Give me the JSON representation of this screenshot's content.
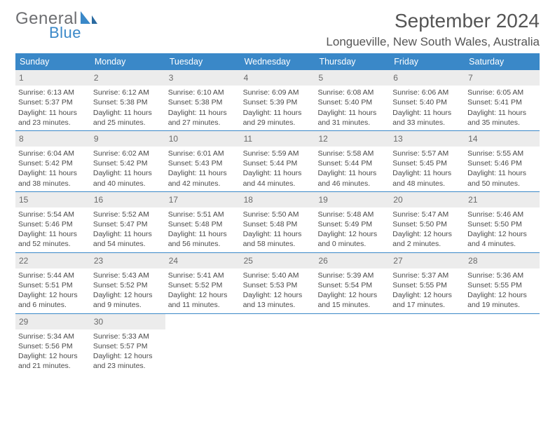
{
  "logo": {
    "general": "General",
    "blue": "Blue"
  },
  "title": "September 2024",
  "location": "Longueville, New South Wales, Australia",
  "colors": {
    "header_bg": "#3a88c8",
    "header_text": "#ffffff",
    "daynum_bg": "#ececec",
    "border": "#3a88c8",
    "text": "#4a4a4a",
    "logo_gray": "#6d6e71",
    "logo_blue": "#3a88c8"
  },
  "day_headers": [
    "Sunday",
    "Monday",
    "Tuesday",
    "Wednesday",
    "Thursday",
    "Friday",
    "Saturday"
  ],
  "weeks": [
    [
      {
        "n": "1",
        "sr": "Sunrise: 6:13 AM",
        "ss": "Sunset: 5:37 PM",
        "d1": "Daylight: 11 hours",
        "d2": "and 23 minutes."
      },
      {
        "n": "2",
        "sr": "Sunrise: 6:12 AM",
        "ss": "Sunset: 5:38 PM",
        "d1": "Daylight: 11 hours",
        "d2": "and 25 minutes."
      },
      {
        "n": "3",
        "sr": "Sunrise: 6:10 AM",
        "ss": "Sunset: 5:38 PM",
        "d1": "Daylight: 11 hours",
        "d2": "and 27 minutes."
      },
      {
        "n": "4",
        "sr": "Sunrise: 6:09 AM",
        "ss": "Sunset: 5:39 PM",
        "d1": "Daylight: 11 hours",
        "d2": "and 29 minutes."
      },
      {
        "n": "5",
        "sr": "Sunrise: 6:08 AM",
        "ss": "Sunset: 5:40 PM",
        "d1": "Daylight: 11 hours",
        "d2": "and 31 minutes."
      },
      {
        "n": "6",
        "sr": "Sunrise: 6:06 AM",
        "ss": "Sunset: 5:40 PM",
        "d1": "Daylight: 11 hours",
        "d2": "and 33 minutes."
      },
      {
        "n": "7",
        "sr": "Sunrise: 6:05 AM",
        "ss": "Sunset: 5:41 PM",
        "d1": "Daylight: 11 hours",
        "d2": "and 35 minutes."
      }
    ],
    [
      {
        "n": "8",
        "sr": "Sunrise: 6:04 AM",
        "ss": "Sunset: 5:42 PM",
        "d1": "Daylight: 11 hours",
        "d2": "and 38 minutes."
      },
      {
        "n": "9",
        "sr": "Sunrise: 6:02 AM",
        "ss": "Sunset: 5:42 PM",
        "d1": "Daylight: 11 hours",
        "d2": "and 40 minutes."
      },
      {
        "n": "10",
        "sr": "Sunrise: 6:01 AM",
        "ss": "Sunset: 5:43 PM",
        "d1": "Daylight: 11 hours",
        "d2": "and 42 minutes."
      },
      {
        "n": "11",
        "sr": "Sunrise: 5:59 AM",
        "ss": "Sunset: 5:44 PM",
        "d1": "Daylight: 11 hours",
        "d2": "and 44 minutes."
      },
      {
        "n": "12",
        "sr": "Sunrise: 5:58 AM",
        "ss": "Sunset: 5:44 PM",
        "d1": "Daylight: 11 hours",
        "d2": "and 46 minutes."
      },
      {
        "n": "13",
        "sr": "Sunrise: 5:57 AM",
        "ss": "Sunset: 5:45 PM",
        "d1": "Daylight: 11 hours",
        "d2": "and 48 minutes."
      },
      {
        "n": "14",
        "sr": "Sunrise: 5:55 AM",
        "ss": "Sunset: 5:46 PM",
        "d1": "Daylight: 11 hours",
        "d2": "and 50 minutes."
      }
    ],
    [
      {
        "n": "15",
        "sr": "Sunrise: 5:54 AM",
        "ss": "Sunset: 5:46 PM",
        "d1": "Daylight: 11 hours",
        "d2": "and 52 minutes."
      },
      {
        "n": "16",
        "sr": "Sunrise: 5:52 AM",
        "ss": "Sunset: 5:47 PM",
        "d1": "Daylight: 11 hours",
        "d2": "and 54 minutes."
      },
      {
        "n": "17",
        "sr": "Sunrise: 5:51 AM",
        "ss": "Sunset: 5:48 PM",
        "d1": "Daylight: 11 hours",
        "d2": "and 56 minutes."
      },
      {
        "n": "18",
        "sr": "Sunrise: 5:50 AM",
        "ss": "Sunset: 5:48 PM",
        "d1": "Daylight: 11 hours",
        "d2": "and 58 minutes."
      },
      {
        "n": "19",
        "sr": "Sunrise: 5:48 AM",
        "ss": "Sunset: 5:49 PM",
        "d1": "Daylight: 12 hours",
        "d2": "and 0 minutes."
      },
      {
        "n": "20",
        "sr": "Sunrise: 5:47 AM",
        "ss": "Sunset: 5:50 PM",
        "d1": "Daylight: 12 hours",
        "d2": "and 2 minutes."
      },
      {
        "n": "21",
        "sr": "Sunrise: 5:46 AM",
        "ss": "Sunset: 5:50 PM",
        "d1": "Daylight: 12 hours",
        "d2": "and 4 minutes."
      }
    ],
    [
      {
        "n": "22",
        "sr": "Sunrise: 5:44 AM",
        "ss": "Sunset: 5:51 PM",
        "d1": "Daylight: 12 hours",
        "d2": "and 6 minutes."
      },
      {
        "n": "23",
        "sr": "Sunrise: 5:43 AM",
        "ss": "Sunset: 5:52 PM",
        "d1": "Daylight: 12 hours",
        "d2": "and 9 minutes."
      },
      {
        "n": "24",
        "sr": "Sunrise: 5:41 AM",
        "ss": "Sunset: 5:52 PM",
        "d1": "Daylight: 12 hours",
        "d2": "and 11 minutes."
      },
      {
        "n": "25",
        "sr": "Sunrise: 5:40 AM",
        "ss": "Sunset: 5:53 PM",
        "d1": "Daylight: 12 hours",
        "d2": "and 13 minutes."
      },
      {
        "n": "26",
        "sr": "Sunrise: 5:39 AM",
        "ss": "Sunset: 5:54 PM",
        "d1": "Daylight: 12 hours",
        "d2": "and 15 minutes."
      },
      {
        "n": "27",
        "sr": "Sunrise: 5:37 AM",
        "ss": "Sunset: 5:55 PM",
        "d1": "Daylight: 12 hours",
        "d2": "and 17 minutes."
      },
      {
        "n": "28",
        "sr": "Sunrise: 5:36 AM",
        "ss": "Sunset: 5:55 PM",
        "d1": "Daylight: 12 hours",
        "d2": "and 19 minutes."
      }
    ],
    [
      {
        "n": "29",
        "sr": "Sunrise: 5:34 AM",
        "ss": "Sunset: 5:56 PM",
        "d1": "Daylight: 12 hours",
        "d2": "and 21 minutes."
      },
      {
        "n": "30",
        "sr": "Sunrise: 5:33 AM",
        "ss": "Sunset: 5:57 PM",
        "d1": "Daylight: 12 hours",
        "d2": "and 23 minutes."
      },
      null,
      null,
      null,
      null,
      null
    ]
  ]
}
